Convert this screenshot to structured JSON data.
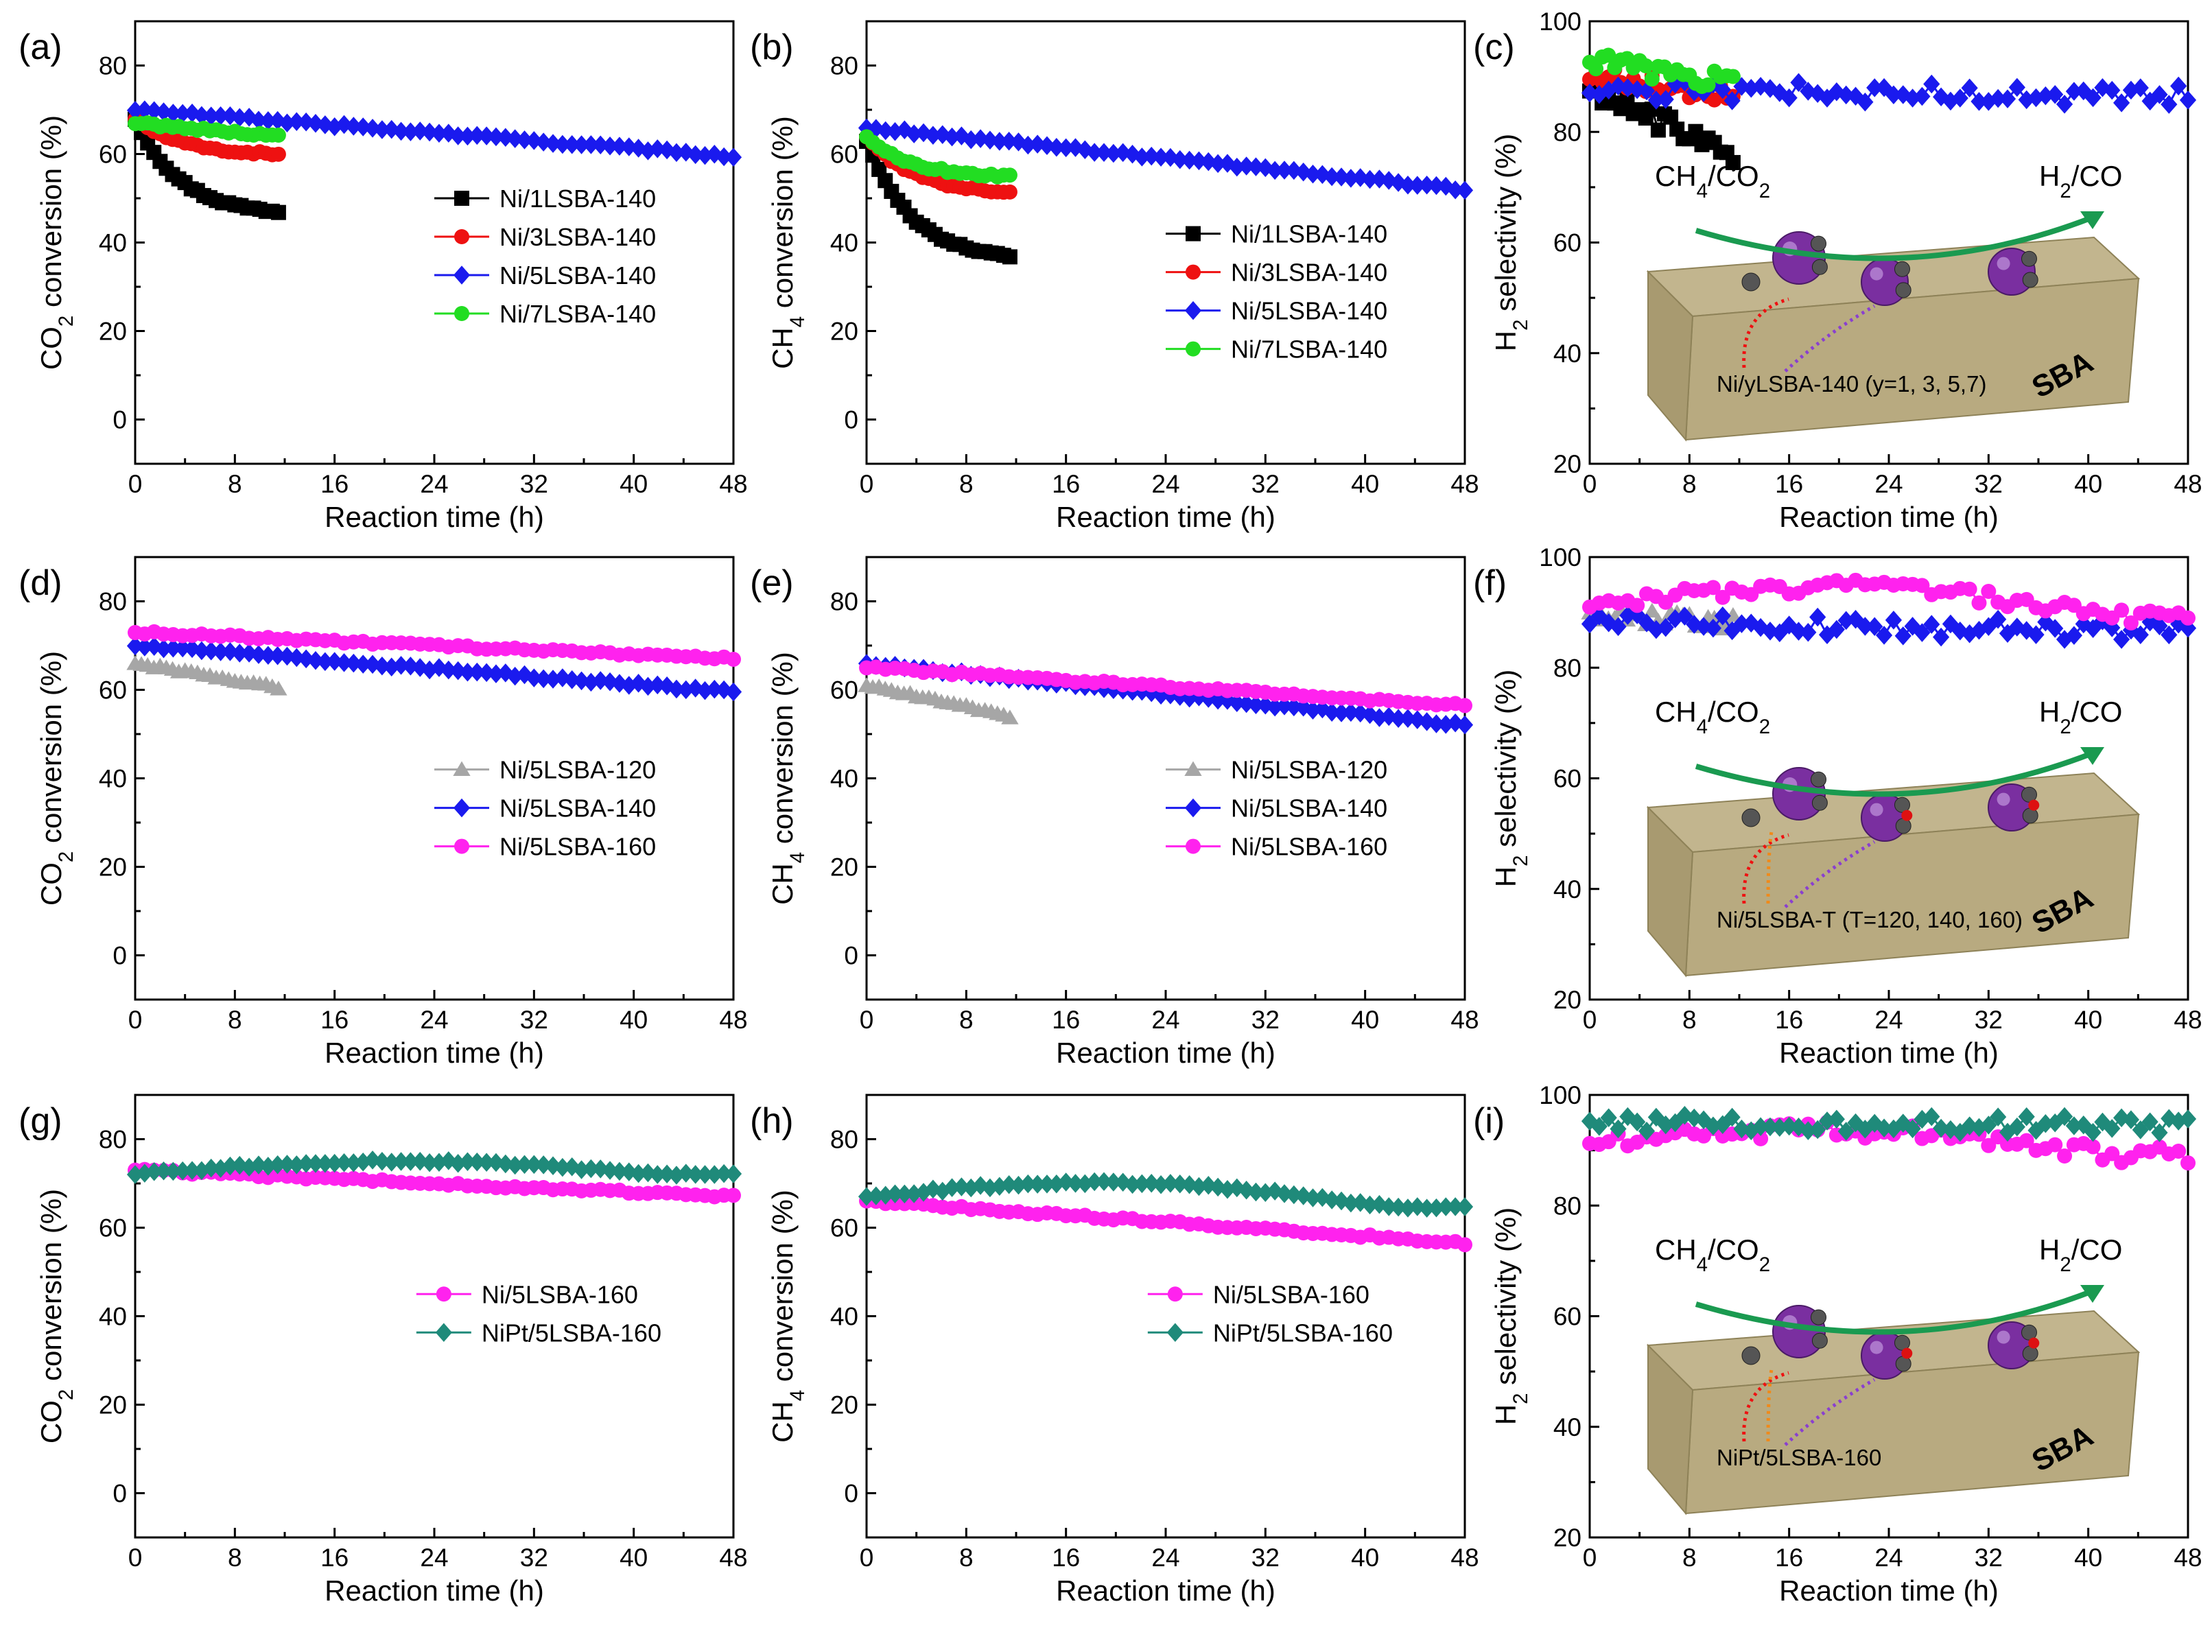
{
  "figure": {
    "colors": {
      "black": "#000000",
      "red": "#ee1111",
      "blue": "#1a1aee",
      "green": "#22dd22",
      "gray": "#a6a6a6",
      "magenta": "#ff22ee",
      "teal": "#1f8a7a",
      "slab": "#c2b58e",
      "sphere": "#7a2fa0",
      "arc": "#1a9a50"
    },
    "insets": {
      "c": {
        "left": "CH4/CO2",
        "right": "H2/CO",
        "caption": "Ni/yLSBA-140 (y=1, 3, 5,7)",
        "support": "SBA"
      },
      "f": {
        "left": "CH4/CO2",
        "right": "H2/CO",
        "caption": "Ni/5LSBA-T (T=120, 140, 160)",
        "support": "SBA"
      },
      "i": {
        "left": "CH4/CO2",
        "right": "H2/CO",
        "caption": "NiPt/5LSBA-160",
        "support": "SBA"
      }
    }
  },
  "chart_data": [
    {
      "panel": "(a)",
      "type": "scatter",
      "xlabel": "Reaction time (h)",
      "ylabel": "CO2 conversion (%)",
      "xlim": [
        0,
        48
      ],
      "ylim": [
        -10,
        90
      ],
      "xticks": [
        0,
        8,
        16,
        24,
        32,
        40,
        48
      ],
      "yticks": [
        0,
        20,
        40,
        60,
        80
      ],
      "legend_position": "right",
      "series": [
        {
          "name": "Ni/1LSBA-140",
          "color": "black",
          "marker": "square",
          "x_start": 0,
          "x_end": 11.5,
          "points": 24,
          "y_start": 68,
          "y_end": 47,
          "shape": "decay"
        },
        {
          "name": "Ni/3LSBA-140",
          "color": "red",
          "marker": "circle",
          "x_start": 0,
          "x_end": 11.5,
          "points": 24,
          "y_start": 68,
          "y_end": 60,
          "shape": "decay"
        },
        {
          "name": "Ni/5LSBA-140",
          "color": "blue",
          "marker": "diamond",
          "x_start": 0,
          "x_end": 48,
          "points": 64,
          "y_start": 70,
          "y_end": 59.5,
          "shape": "linear"
        },
        {
          "name": "Ni/7LSBA-140",
          "color": "green",
          "marker": "circle",
          "x_start": 0,
          "x_end": 11.5,
          "points": 24,
          "y_start": 67,
          "y_end": 64,
          "shape": "linear"
        }
      ]
    },
    {
      "panel": "(b)",
      "type": "scatter",
      "xlabel": "Reaction time (h)",
      "ylabel": "CH4 conversion (%)",
      "xlim": [
        0,
        48
      ],
      "ylim": [
        -10,
        90
      ],
      "xticks": [
        0,
        8,
        16,
        24,
        32,
        40,
        48
      ],
      "yticks": [
        0,
        20,
        40,
        60,
        80
      ],
      "legend_position": "lower-right",
      "series": [
        {
          "name": "Ni/1LSBA-140",
          "color": "black",
          "marker": "square",
          "x_start": 0,
          "x_end": 11.5,
          "points": 24,
          "y_start": 63,
          "y_end": 37,
          "shape": "decay"
        },
        {
          "name": "Ni/3LSBA-140",
          "color": "red",
          "marker": "circle",
          "x_start": 0,
          "x_end": 11.5,
          "points": 24,
          "y_start": 64,
          "y_end": 51.5,
          "shape": "decay"
        },
        {
          "name": "Ni/5LSBA-140",
          "color": "blue",
          "marker": "diamond",
          "x_start": 0,
          "x_end": 48,
          "points": 64,
          "y_start": 66,
          "y_end": 52,
          "shape": "linear"
        },
        {
          "name": "Ni/7LSBA-140",
          "color": "green",
          "marker": "circle",
          "x_start": 0,
          "x_end": 11.5,
          "points": 24,
          "y_start": 64,
          "y_end": 55,
          "shape": "decay"
        }
      ]
    },
    {
      "panel": "(c)",
      "type": "scatter",
      "xlabel": "Reaction time (h)",
      "ylabel": "H2 selectivity (%)",
      "xlim": [
        0,
        48
      ],
      "ylim": [
        20,
        100
      ],
      "xticks": [
        0,
        8,
        16,
        24,
        32,
        40,
        48
      ],
      "yticks": [
        20,
        40,
        60,
        80,
        100
      ],
      "series": [
        {
          "name": "Ni/1LSBA-140",
          "color": "black",
          "marker": "square",
          "x_start": 0,
          "x_end": 11.5,
          "points": 24,
          "y_start": 88,
          "y_end": 76,
          "shape": "linear",
          "jitter": 2
        },
        {
          "name": "Ni/3LSBA-140",
          "color": "red",
          "marker": "circle",
          "x_start": 0,
          "x_end": 11.5,
          "points": 24,
          "y_start": 90,
          "y_end": 87,
          "shape": "linear",
          "jitter": 1.8
        },
        {
          "name": "Ni/5LSBA-140",
          "color": "blue",
          "marker": "diamond",
          "x_start": 0,
          "x_end": 48,
          "points": 64,
          "y_start": 87.5,
          "y_end": 86.5,
          "shape": "linear",
          "jitter": 1.8
        },
        {
          "name": "Ni/7LSBA-140",
          "color": "green",
          "marker": "circle",
          "x_start": 0,
          "x_end": 11.5,
          "points": 24,
          "y_start": 93,
          "y_end": 89,
          "shape": "linear",
          "jitter": 1.8
        }
      ]
    },
    {
      "panel": "(d)",
      "type": "scatter",
      "xlabel": "Reaction time (h)",
      "ylabel": "CO2 conversion (%)",
      "xlim": [
        0,
        48
      ],
      "ylim": [
        -10,
        90
      ],
      "xticks": [
        0,
        8,
        16,
        24,
        32,
        40,
        48
      ],
      "yticks": [
        0,
        20,
        40,
        60,
        80
      ],
      "legend_position": "lower-right",
      "series": [
        {
          "name": "Ni/5LSBA-120",
          "color": "gray",
          "marker": "triangle",
          "x_start": 0,
          "x_end": 11.5,
          "points": 24,
          "y_start": 66,
          "y_end": 60.5,
          "shape": "linear"
        },
        {
          "name": "Ni/5LSBA-140",
          "color": "blue",
          "marker": "diamond",
          "x_start": 0,
          "x_end": 48,
          "points": 64,
          "y_start": 70,
          "y_end": 59.5,
          "shape": "linear"
        },
        {
          "name": "Ni/5LSBA-160",
          "color": "magenta",
          "marker": "circle",
          "x_start": 0,
          "x_end": 48,
          "points": 64,
          "y_start": 73,
          "y_end": 67,
          "shape": "linear"
        }
      ]
    },
    {
      "panel": "(e)",
      "type": "scatter",
      "xlabel": "Reaction time (h)",
      "ylabel": "CH4 conversion (%)",
      "xlim": [
        0,
        48
      ],
      "ylim": [
        -10,
        90
      ],
      "xticks": [
        0,
        8,
        16,
        24,
        32,
        40,
        48
      ],
      "yticks": [
        0,
        20,
        40,
        60,
        80
      ],
      "legend_position": "lower-right",
      "series": [
        {
          "name": "Ni/5LSBA-120",
          "color": "gray",
          "marker": "triangle",
          "x_start": 0,
          "x_end": 11.5,
          "points": 24,
          "y_start": 61,
          "y_end": 54,
          "shape": "linear"
        },
        {
          "name": "Ni/5LSBA-140",
          "color": "blue",
          "marker": "diamond",
          "x_start": 0,
          "x_end": 48,
          "points": 64,
          "y_start": 66,
          "y_end": 52,
          "shape": "linear"
        },
        {
          "name": "Ni/5LSBA-160",
          "color": "magenta",
          "marker": "circle",
          "x_start": 0,
          "x_end": 48,
          "points": 64,
          "y_start": 65,
          "y_end": 56.5,
          "shape": "linear"
        }
      ]
    },
    {
      "panel": "(f)",
      "type": "scatter",
      "xlabel": "Reaction time (h)",
      "ylabel": "H2 selectivity (%)",
      "xlim": [
        0,
        48
      ],
      "ylim": [
        20,
        100
      ],
      "xticks": [
        0,
        8,
        16,
        24,
        32,
        40,
        48
      ],
      "yticks": [
        20,
        40,
        60,
        80,
        100
      ],
      "series": [
        {
          "name": "Ni/5LSBA-120",
          "color": "gray",
          "marker": "triangle",
          "x_start": 0,
          "x_end": 11.5,
          "points": 24,
          "y_start": 90,
          "y_end": 88,
          "shape": "linear",
          "jitter": 1.5
        },
        {
          "name": "Ni/5LSBA-140",
          "color": "blue",
          "marker": "diamond",
          "x_start": 0,
          "x_end": 48,
          "points": 64,
          "y_start": 88,
          "y_end": 86.5,
          "shape": "linear",
          "jitter": 1.8
        },
        {
          "name": "Ni/5LSBA-160",
          "color": "magenta",
          "marker": "circle",
          "x_start": 0,
          "x_end": 48,
          "points": 64,
          "y_start": 91,
          "y_end": 89,
          "shape": "hump",
          "peak": 94.5,
          "jitter": 1.2
        }
      ]
    },
    {
      "panel": "(g)",
      "type": "scatter",
      "xlabel": "Reaction time (h)",
      "ylabel": "CO2 conversion (%)",
      "xlim": [
        0,
        48
      ],
      "ylim": [
        -10,
        90
      ],
      "xticks": [
        0,
        8,
        16,
        24,
        32,
        40,
        48
      ],
      "yticks": [
        0,
        20,
        40,
        60,
        80
      ],
      "legend_position": "center-right",
      "series": [
        {
          "name": "Ni/5LSBA-160",
          "color": "magenta",
          "marker": "circle",
          "x_start": 0,
          "x_end": 48,
          "points": 64,
          "y_start": 73,
          "y_end": 67,
          "shape": "linear"
        },
        {
          "name": "NiPt/5LSBA-160",
          "color": "teal",
          "marker": "diamond",
          "x_start": 0,
          "x_end": 48,
          "points": 64,
          "y_start": 72,
          "y_end": 72,
          "shape": "hump",
          "peak": 75
        }
      ]
    },
    {
      "panel": "(h)",
      "type": "scatter",
      "xlabel": "Reaction time (h)",
      "ylabel": "CH4 conversion (%)",
      "xlim": [
        0,
        48
      ],
      "ylim": [
        -10,
        90
      ],
      "xticks": [
        0,
        8,
        16,
        24,
        32,
        40,
        48
      ],
      "yticks": [
        0,
        20,
        40,
        60,
        80
      ],
      "legend_position": "center-right",
      "series": [
        {
          "name": "Ni/5LSBA-160",
          "color": "magenta",
          "marker": "circle",
          "x_start": 0,
          "x_end": 48,
          "points": 64,
          "y_start": 66,
          "y_end": 56.5,
          "shape": "linear"
        },
        {
          "name": "NiPt/5LSBA-160",
          "color": "teal",
          "marker": "diamond",
          "x_start": 0,
          "x_end": 48,
          "points": 64,
          "y_start": 67,
          "y_end": 64.5,
          "shape": "hump",
          "peak": 70
        }
      ]
    },
    {
      "panel": "(i)",
      "type": "scatter",
      "xlabel": "Reaction time (h)",
      "ylabel": "H2 selectivity (%)",
      "xlim": [
        0,
        48
      ],
      "ylim": [
        20,
        100
      ],
      "xticks": [
        0,
        8,
        16,
        24,
        32,
        40,
        48
      ],
      "yticks": [
        20,
        40,
        60,
        80,
        100
      ],
      "series": [
        {
          "name": "Ni/5LSBA-160",
          "color": "magenta",
          "marker": "circle",
          "x_start": 0,
          "x_end": 48,
          "points": 64,
          "y_start": 91,
          "y_end": 89,
          "shape": "hump",
          "peak": 93.5,
          "jitter": 1.5
        },
        {
          "name": "NiPt/5LSBA-160",
          "color": "teal",
          "marker": "diamond",
          "x_start": 0,
          "x_end": 48,
          "points": 64,
          "y_start": 95,
          "y_end": 94.5,
          "shape": "linear",
          "jitter": 1.5
        }
      ]
    }
  ]
}
